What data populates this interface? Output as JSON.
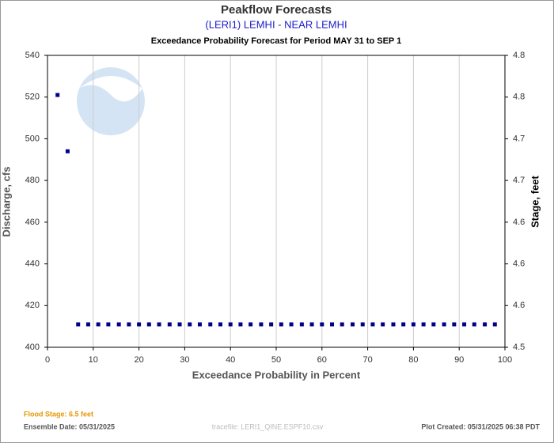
{
  "chart_data": {
    "type": "scatter",
    "title": "Peakflow Forecasts",
    "subtitle": "(LERI1) LEMHI - NEAR LEMHI",
    "period": "Exceedance Probability Forecast for Period MAY 31 to SEP 1",
    "x_label": "Exceedance Probability in Percent",
    "y_label": "Discharge, cfs",
    "y2_label": "Stage, feet",
    "xlim": [
      0,
      100
    ],
    "xticks": [
      0,
      10,
      20,
      30,
      40,
      50,
      60,
      70,
      80,
      90,
      100
    ],
    "ylim": [
      400,
      540
    ],
    "yticks": [
      400,
      420,
      440,
      460,
      480,
      500,
      520,
      540
    ],
    "y2ticks": [
      {
        "value": 4.5,
        "label": "4.5"
      },
      {
        "value": 4.56,
        "label": "4.6"
      },
      {
        "value": 4.59,
        "label": "4.6"
      },
      {
        "value": 4.62,
        "label": "4.6"
      },
      {
        "value": 4.66,
        "label": "4.7"
      },
      {
        "value": 4.7,
        "label": "4.7"
      },
      {
        "value": 4.75,
        "label": "4.8"
      },
      {
        "value": 4.8,
        "label": "4.8"
      }
    ],
    "grid": "x",
    "series": [
      {
        "color": "#00008b",
        "x": [
          2.2,
          4.4,
          6.7,
          8.9,
          11.1,
          13.3,
          15.6,
          17.8,
          20,
          22.2,
          24.4,
          26.7,
          28.9,
          31.1,
          33.3,
          35.6,
          37.8,
          40,
          42.2,
          44.4,
          46.7,
          48.9,
          51.1,
          53.3,
          55.6,
          57.8,
          60,
          62.2,
          64.4,
          66.7,
          68.9,
          71.1,
          73.3,
          75.6,
          77.8,
          80,
          82.2,
          84.4,
          86.7,
          88.9,
          91.1,
          93.3,
          95.6,
          97.8
        ],
        "values": [
          521,
          494,
          411,
          411,
          411,
          411,
          411,
          411,
          411,
          411,
          411,
          411,
          411,
          411,
          411,
          411,
          411,
          411,
          411,
          411,
          411,
          411,
          411,
          411,
          411,
          411,
          411,
          411,
          411,
          411,
          411,
          411,
          411,
          411,
          411,
          411,
          411,
          411,
          411,
          411,
          411,
          411,
          411,
          411
        ]
      }
    ],
    "footer": {
      "flood_stage": "Flood Stage: 6.5 feet",
      "ensemble_date": "Ensemble Date: 05/31/2025",
      "tracefile": "tracefile: LERI1_QINE.ESPF10.csv",
      "plot_created": "Plot Created: 05/31/2025 06:38 PDT"
    }
  }
}
